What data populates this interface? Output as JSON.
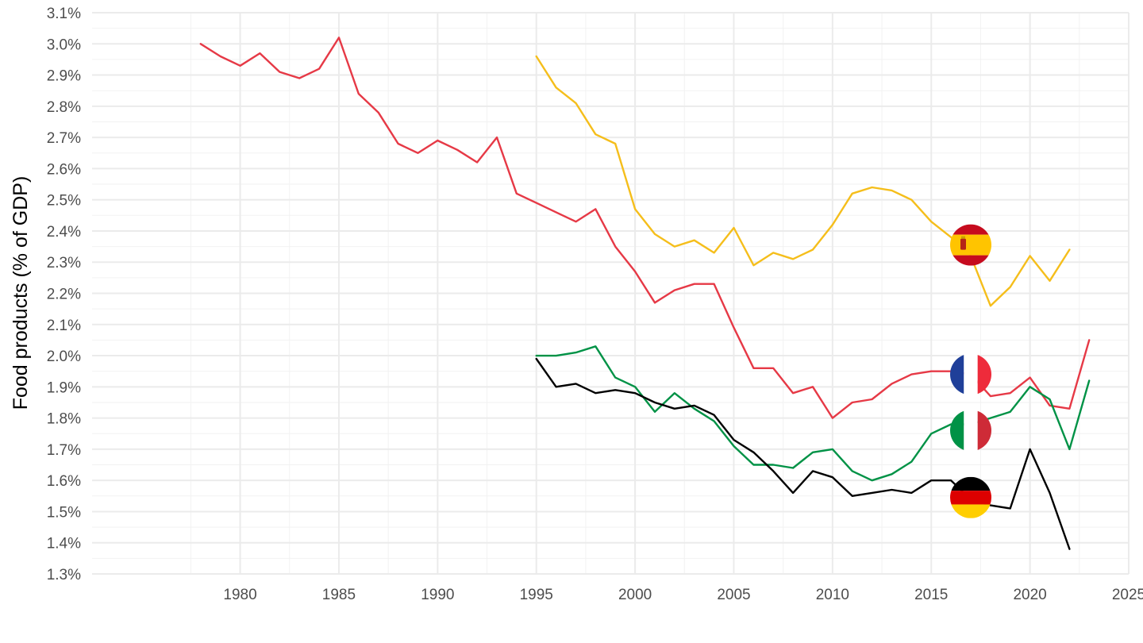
{
  "chart_data": {
    "type": "line",
    "title": "",
    "xlabel": "",
    "ylabel": "Food products (% of GDP)",
    "xlim": [
      1972.5,
      2025
    ],
    "ylim": [
      1.3,
      3.1
    ],
    "x_ticks": [
      1980,
      1985,
      1990,
      1995,
      2000,
      2005,
      2010,
      2015,
      2020,
      2025
    ],
    "x_tick_labels": [
      "1980",
      "1985",
      "1990",
      "1995",
      "2000",
      "2005",
      "2010",
      "2015",
      "2020",
      "2025"
    ],
    "y_ticks": [
      1.3,
      1.4,
      1.5,
      1.6,
      1.7,
      1.8,
      1.9,
      2.0,
      2.1,
      2.2,
      2.3,
      2.4,
      2.5,
      2.6,
      2.7,
      2.8,
      2.9,
      3.0,
      3.1
    ],
    "y_tick_labels": [
      "1.3%",
      "1.4%",
      "1.5%",
      "1.6%",
      "1.7%",
      "1.8%",
      "1.9%",
      "2.0%",
      "2.1%",
      "2.2%",
      "2.3%",
      "2.4%",
      "2.5%",
      "2.6%",
      "2.7%",
      "2.8%",
      "2.9%",
      "3.0%",
      "3.1%"
    ],
    "grid": true,
    "legend": "flag markers at 2017",
    "series": [
      {
        "color": "#E63946",
        "flag": "france-flag",
        "flag_point": [
          2017,
          1.94
        ],
        "x": [
          1978,
          1979,
          1980,
          1981,
          1982,
          1983,
          1984,
          1985,
          1986,
          1987,
          1988,
          1989,
          1990,
          1991,
          1992,
          1993,
          1994,
          1995,
          1996,
          1997,
          1998,
          1999,
          2000,
          2001,
          2002,
          2003,
          2004,
          2005,
          2006,
          2007,
          2008,
          2009,
          2010,
          2011,
          2012,
          2013,
          2014,
          2015,
          2016,
          2017,
          2018,
          2019,
          2020,
          2021,
          2022,
          2023
        ],
        "y": [
          3.0,
          2.96,
          2.93,
          2.97,
          2.91,
          2.89,
          2.92,
          3.02,
          2.84,
          2.78,
          2.68,
          2.65,
          2.69,
          2.66,
          2.62,
          2.7,
          2.52,
          2.49,
          2.46,
          2.43,
          2.47,
          2.35,
          2.27,
          2.17,
          2.21,
          2.23,
          2.23,
          2.09,
          1.96,
          1.96,
          1.88,
          1.9,
          1.8,
          1.85,
          1.86,
          1.91,
          1.94,
          1.95,
          1.95,
          1.94,
          1.87,
          1.88,
          1.93,
          1.84,
          1.83,
          2.05
        ]
      },
      {
        "color": "#F5BE1B",
        "flag": "spain-flag",
        "flag_point": [
          2017,
          2.355
        ],
        "x": [
          1995,
          1996,
          1997,
          1998,
          1999,
          2000,
          2001,
          2002,
          2003,
          2004,
          2005,
          2006,
          2007,
          2008,
          2009,
          2010,
          2011,
          2012,
          2013,
          2014,
          2015,
          2016,
          2017,
          2018,
          2019,
          2020,
          2021,
          2022
        ],
        "y": [
          2.96,
          2.86,
          2.81,
          2.71,
          2.68,
          2.47,
          2.39,
          2.35,
          2.37,
          2.33,
          2.41,
          2.29,
          2.33,
          2.31,
          2.34,
          2.42,
          2.52,
          2.54,
          2.53,
          2.5,
          2.43,
          2.38,
          2.32,
          2.16,
          2.22,
          2.32,
          2.24,
          2.34
        ]
      },
      {
        "color": "#009246",
        "flag": "italy-flag",
        "flag_point": [
          2017,
          1.76
        ],
        "x": [
          1995,
          1996,
          1997,
          1998,
          1999,
          2000,
          2001,
          2002,
          2003,
          2004,
          2005,
          2006,
          2007,
          2008,
          2009,
          2010,
          2011,
          2012,
          2013,
          2014,
          2015,
          2016,
          2017,
          2018,
          2019,
          2020,
          2021,
          2022,
          2023
        ],
        "y": [
          2.0,
          2.0,
          2.01,
          2.03,
          1.93,
          1.9,
          1.82,
          1.88,
          1.83,
          1.79,
          1.71,
          1.65,
          1.65,
          1.64,
          1.69,
          1.7,
          1.63,
          1.6,
          1.62,
          1.66,
          1.75,
          1.78,
          1.78,
          1.8,
          1.82,
          1.9,
          1.86,
          1.7,
          1.92
        ]
      },
      {
        "color": "#000000",
        "flag": "germany-flag",
        "flag_point": [
          2017,
          1.545
        ],
        "x": [
          1995,
          1996,
          1997,
          1998,
          1999,
          2000,
          2001,
          2002,
          2003,
          2004,
          2005,
          2006,
          2007,
          2008,
          2009,
          2010,
          2011,
          2012,
          2013,
          2014,
          2015,
          2016,
          2017,
          2018,
          2019,
          2020,
          2021,
          2022
        ],
        "y": [
          1.99,
          1.9,
          1.91,
          1.88,
          1.89,
          1.88,
          1.85,
          1.83,
          1.84,
          1.81,
          1.73,
          1.69,
          1.63,
          1.56,
          1.63,
          1.61,
          1.55,
          1.56,
          1.57,
          1.56,
          1.6,
          1.6,
          1.54,
          1.52,
          1.51,
          1.7,
          1.56,
          1.38
        ]
      }
    ]
  }
}
